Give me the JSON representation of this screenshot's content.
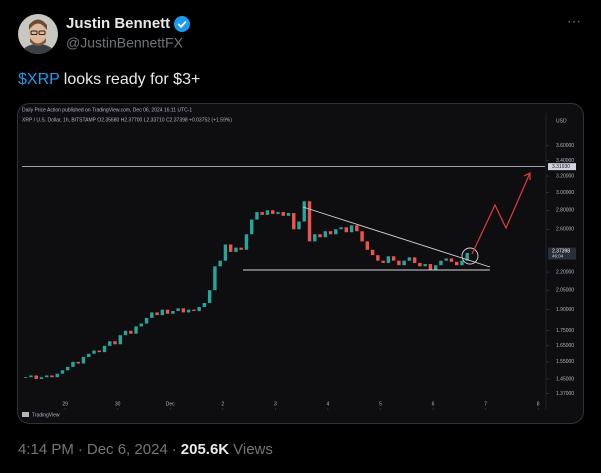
{
  "author": {
    "name": "Justin Bennett",
    "handle": "@JustinBennettFX"
  },
  "more": "···",
  "tweet": {
    "cashtag": "$XRP",
    "text": "looks ready for $3+"
  },
  "footer": {
    "time": "4:14 PM",
    "separator": "·",
    "date": "Dec 6, 2024",
    "views": "205.6K",
    "views_label": "Views"
  },
  "chart_data": {
    "type": "candlestick",
    "title": "Daily Price Action published on TradingView.com, Dec 06, 2024 16:11 UTC-1",
    "subtitle": "XRP / U.S. Dollar, 1h, BITSTAMP O2.35680 H2.37700 L2.33710 C2.37398 +0.03752 (+1.59%)",
    "currency": "USD",
    "source": "TradingView",
    "log_scale": true,
    "up_color": "#26a69a",
    "down_color": "#ef5350",
    "x": [
      -0.75,
      -0.65,
      -0.55,
      -0.45,
      -0.35,
      -0.25,
      -0.15,
      -0.05,
      0.05,
      0.15,
      0.25,
      0.35,
      0.45,
      0.55,
      0.65,
      0.75,
      0.85,
      0.95,
      1.05,
      1.15,
      1.25,
      1.35,
      1.45,
      1.55,
      1.65,
      1.75,
      1.85,
      1.95,
      2.05,
      2.15,
      2.25,
      2.35,
      2.45,
      2.55,
      2.65,
      2.75,
      2.85,
      2.95,
      3.05,
      3.15,
      3.25,
      3.35,
      3.45,
      3.55,
      3.65,
      3.75,
      3.85,
      3.95,
      4.05,
      4.15,
      4.25,
      4.35,
      4.45,
      4.55,
      4.65,
      4.75,
      4.85,
      4.95,
      5.05,
      5.15,
      5.25,
      5.35,
      5.45,
      5.55,
      5.65,
      5.75,
      5.85,
      5.95,
      6.05,
      6.15,
      6.25,
      6.35,
      6.45,
      6.55,
      6.65,
      6.75,
      6.85,
      6.95,
      7.05,
      7.15,
      7.25,
      7.35,
      7.45,
      7.55,
      7.65
    ],
    "values": [
      1.46,
      1.47,
      1.45,
      1.46,
      1.47,
      1.46,
      1.48,
      1.5,
      1.52,
      1.55,
      1.54,
      1.58,
      1.6,
      1.62,
      1.61,
      1.65,
      1.68,
      1.66,
      1.72,
      1.75,
      1.73,
      1.78,
      1.8,
      1.84,
      1.88,
      1.86,
      1.9,
      1.87,
      1.89,
      1.91,
      1.88,
      1.9,
      1.89,
      1.92,
      1.95,
      2.05,
      2.25,
      2.3,
      2.45,
      2.38,
      2.42,
      2.4,
      2.55,
      2.7,
      2.78,
      2.75,
      2.8,
      2.76,
      2.78,
      2.74,
      2.77,
      2.6,
      2.68,
      2.9,
      2.48,
      2.55,
      2.52,
      2.58,
      2.55,
      2.6,
      2.62,
      2.57,
      2.64,
      2.58,
      2.48,
      2.4,
      2.35,
      2.3,
      2.28,
      2.34,
      2.3,
      2.26,
      2.3,
      2.33,
      2.28,
      2.25,
      2.27,
      2.22,
      2.26,
      2.3,
      2.32,
      2.29,
      2.26,
      2.3,
      2.37
    ],
    "xlim": [
      -0.82,
      9.13
    ],
    "xticks": [
      {
        "value": 0,
        "label": "29"
      },
      {
        "value": 1,
        "label": "30"
      },
      {
        "value": 2,
        "label": "Dec"
      },
      {
        "value": 3,
        "label": "2"
      },
      {
        "value": 4,
        "label": "3"
      },
      {
        "value": 5,
        "label": "4"
      },
      {
        "value": 6,
        "label": "5"
      },
      {
        "value": 7,
        "label": "6"
      },
      {
        "value": 8,
        "label": "7"
      },
      {
        "value": 9,
        "label": "8"
      }
    ],
    "ylim": [
      1.31,
      4.06
    ],
    "yticks": [
      {
        "value": 3.6,
        "label": "3.60000"
      },
      {
        "value": 3.4,
        "label": "3.40000"
      },
      {
        "value": 3.2,
        "label": "3.20000"
      },
      {
        "value": 3,
        "label": "3.00000"
      },
      {
        "value": 2.8,
        "label": "2.80000"
      },
      {
        "value": 2.6,
        "label": "2.60000"
      },
      {
        "value": 2.2,
        "label": "2.20000"
      },
      {
        "value": 2.05,
        "label": "2.05000"
      },
      {
        "value": 1.9,
        "label": "1.90000"
      },
      {
        "value": 1.75,
        "label": "1.75000"
      },
      {
        "value": 1.65,
        "label": "1.65000"
      },
      {
        "value": 1.55,
        "label": "1.55000"
      },
      {
        "value": 1.45,
        "label": "1.45000"
      },
      {
        "value": 1.37,
        "label": "1.37000"
      }
    ],
    "level": {
      "value": 3.3193,
      "label": "3.31930"
    },
    "last": {
      "value": 2.37398,
      "label": "2.37398"
    },
    "countdown": "46:04"
  }
}
